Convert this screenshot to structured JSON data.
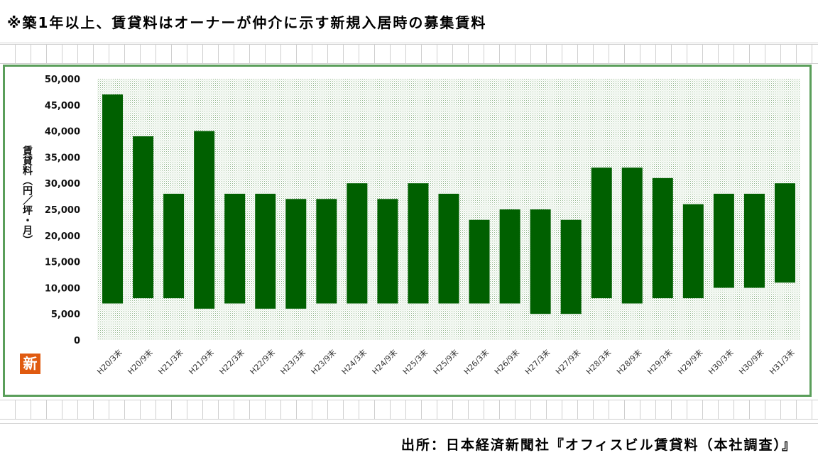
{
  "note": "※築1年以上、賃貸料はオーナーが仲介に示す新規入居時の募集賃料",
  "source": "出所：日本経済新聞社『オフィスビル賃貸料（本社調査）』",
  "logo_text": "新",
  "colors": {
    "bar": "#006000",
    "frame": "#5a9e5a",
    "plot_dots": "#a9c9a0"
  },
  "chart_data": {
    "type": "bar",
    "subtype": "floating-range",
    "ylabel": "賃貸料（円／坪・月）",
    "ylim": [
      0,
      50000
    ],
    "yticks": [
      "50,000",
      "45,000",
      "40,000",
      "35,000",
      "30,000",
      "25,000",
      "20,000",
      "15,000",
      "10,000",
      "5,000",
      "0"
    ],
    "ytick_values": [
      50000,
      45000,
      40000,
      35000,
      30000,
      25000,
      20000,
      15000,
      10000,
      5000,
      0
    ],
    "categories": [
      "H20/3末",
      "H20/9末",
      "H21/3末",
      "H21/9末",
      "H22/3末",
      "H22/9末",
      "H23/3末",
      "H23/9末",
      "H24/3末",
      "H24/9末",
      "H25/3末",
      "H25/9末",
      "H26/3末",
      "H26/9末",
      "H27/3末",
      "H27/9末",
      "H28/3末",
      "H28/9末",
      "H29/3末",
      "H29/9末",
      "H30/3末",
      "H30/9末",
      "H31/3末"
    ],
    "low": [
      7000,
      8000,
      8000,
      6000,
      7000,
      6000,
      6000,
      7000,
      7000,
      7000,
      7000,
      7000,
      7000,
      7000,
      5000,
      5000,
      8000,
      7000,
      8000,
      8000,
      10000,
      10000,
      11000
    ],
    "high": [
      47000,
      39000,
      28000,
      40000,
      28000,
      28000,
      27000,
      27000,
      30000,
      27000,
      30000,
      28000,
      23000,
      25000,
      25000,
      23000,
      33000,
      33000,
      31000,
      26000,
      28000,
      28000,
      30000
    ],
    "grid": false,
    "legend": "none"
  }
}
